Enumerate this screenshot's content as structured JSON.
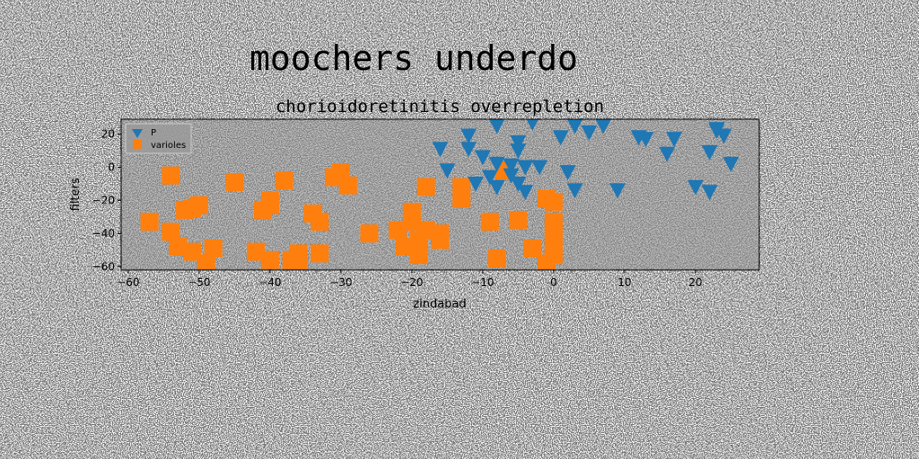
{
  "figure": {
    "suptitle": "moochers underdo",
    "background_color": "#ffffff",
    "plot_background_color": "#808080"
  },
  "chart_data": {
    "type": "scatter",
    "title": "chorioidoretinitis overrepletion",
    "xlabel": "zindabad",
    "ylabel": "filters",
    "xlim": [
      -61,
      29
    ],
    "ylim": [
      -62,
      29
    ],
    "xticks": [
      -60,
      -50,
      -40,
      -30,
      -20,
      -10,
      0,
      10,
      20
    ],
    "yticks": [
      -60,
      -40,
      -20,
      0,
      20
    ],
    "grid": false,
    "legend_position": "upper left",
    "series": [
      {
        "name": "P",
        "marker": "triangle-down",
        "color": "#1f77b4",
        "points": [
          [
            -8,
            25
          ],
          [
            -3,
            27
          ],
          [
            3,
            25
          ],
          [
            5,
            21
          ],
          [
            7,
            25
          ],
          [
            -12,
            19
          ],
          [
            -16,
            11
          ],
          [
            -12,
            11
          ],
          [
            -5,
            15
          ],
          [
            -5,
            10
          ],
          [
            1,
            18
          ],
          [
            12,
            18
          ],
          [
            13,
            17
          ],
          [
            17,
            17
          ],
          [
            16,
            8
          ],
          [
            22,
            9
          ],
          [
            24,
            19
          ],
          [
            23,
            22
          ],
          [
            23,
            23
          ],
          [
            25,
            2
          ],
          [
            -10,
            6
          ],
          [
            -8,
            2
          ],
          [
            -6,
            1
          ],
          [
            -4,
            0
          ],
          [
            -2,
            0
          ],
          [
            2,
            -3
          ],
          [
            -15,
            -2
          ],
          [
            -9,
            -6
          ],
          [
            -11,
            -10
          ],
          [
            -8,
            -12
          ],
          [
            -5,
            -10
          ],
          [
            -4,
            -15
          ],
          [
            -6,
            -5
          ],
          [
            3,
            -14
          ],
          [
            9,
            -14
          ],
          [
            20,
            -12
          ],
          [
            22,
            -15
          ]
        ]
      },
      {
        "name": "varioles",
        "marker": "square",
        "color": "#ff7f0e",
        "points": [
          [
            -54,
            -5
          ],
          [
            -45,
            -9
          ],
          [
            -38,
            -8
          ],
          [
            -31,
            -6
          ],
          [
            -30,
            -3
          ],
          [
            -29,
            -11
          ],
          [
            -57,
            -33
          ],
          [
            -54,
            -39
          ],
          [
            -52,
            -26
          ],
          [
            -51,
            -25
          ],
          [
            -50,
            -23
          ],
          [
            -53,
            -48
          ],
          [
            -51,
            -51
          ],
          [
            -49,
            -58
          ],
          [
            -48,
            -49
          ],
          [
            -42,
            -51
          ],
          [
            -40,
            -56
          ],
          [
            -37,
            -56
          ],
          [
            -36,
            -52
          ],
          [
            -36,
            -58
          ],
          [
            -33,
            -52
          ],
          [
            -40,
            -23
          ],
          [
            -41,
            -26
          ],
          [
            -40,
            -20
          ],
          [
            -34,
            -28
          ],
          [
            -33,
            -33
          ],
          [
            -26,
            -40
          ],
          [
            -22,
            -38
          ],
          [
            -20,
            -27
          ],
          [
            -20,
            -33
          ],
          [
            -18,
            -38
          ],
          [
            -16,
            -40
          ],
          [
            -16,
            -44
          ],
          [
            -19,
            -44
          ],
          [
            -21,
            -48
          ],
          [
            -19,
            -53
          ],
          [
            -18,
            -12
          ],
          [
            -13,
            -19
          ],
          [
            -13,
            -12
          ],
          [
            -7,
            -2
          ],
          [
            -9,
            -33
          ],
          [
            -8,
            -55
          ],
          [
            -5,
            -32
          ],
          [
            -3,
            -49
          ],
          [
            -1,
            -58
          ],
          [
            0,
            -53
          ],
          [
            0,
            -48
          ],
          [
            0,
            -43
          ],
          [
            0,
            -38
          ],
          [
            0,
            -33
          ],
          [
            0,
            -21
          ],
          [
            -1,
            -19
          ]
        ]
      }
    ]
  }
}
